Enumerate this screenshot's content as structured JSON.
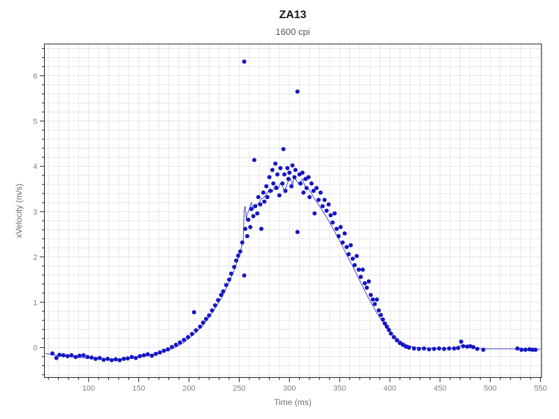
{
  "page": {
    "title": "ZA13",
    "subtitle": "1600 cpi"
  },
  "chart_data": {
    "type": "scatter",
    "title": "ZA13",
    "subtitle": "1600 cpi",
    "xlabel": "Time (ms)",
    "ylabel": "xVelocity (m/s)",
    "xlim": [
      56,
      551
    ],
    "ylim": [
      -0.66,
      6.7
    ],
    "x_major_ticks": [
      100,
      150,
      200,
      250,
      300,
      350,
      400,
      450,
      500,
      550
    ],
    "x_minor_step": 10,
    "y_major_ticks": [
      0,
      1,
      2,
      3,
      4,
      5,
      6
    ],
    "y_minor_step": 0.2,
    "grid": true,
    "legend_position": "none",
    "colors": {
      "marker": "#1515c4",
      "line": "#4646cf",
      "grid": "#e4e4ee",
      "frame": "#1c1c1c",
      "tick": "#1c1c1c",
      "tick_label": "#7f7f7f",
      "axis_label": "#6e6e6e",
      "title": "#1a1a1a",
      "subtitle": "#555555"
    },
    "marker_radius": 3,
    "series": [
      {
        "name": "measured-points",
        "type": "scatter",
        "points": [
          [
            64,
            -0.13
          ],
          [
            68,
            -0.23
          ],
          [
            71,
            -0.16
          ],
          [
            75,
            -0.17
          ],
          [
            79,
            -0.19
          ],
          [
            83,
            -0.17
          ],
          [
            87,
            -0.21
          ],
          [
            91,
            -0.18
          ],
          [
            95,
            -0.17
          ],
          [
            99,
            -0.21
          ],
          [
            103,
            -0.22
          ],
          [
            107,
            -0.25
          ],
          [
            111,
            -0.23
          ],
          [
            115,
            -0.27
          ],
          [
            119,
            -0.25
          ],
          [
            123,
            -0.28
          ],
          [
            127,
            -0.26
          ],
          [
            131,
            -0.28
          ],
          [
            135,
            -0.25
          ],
          [
            139,
            -0.24
          ],
          [
            143,
            -0.21
          ],
          [
            147,
            -0.23
          ],
          [
            151,
            -0.19
          ],
          [
            155,
            -0.17
          ],
          [
            159,
            -0.15
          ],
          [
            163,
            -0.18
          ],
          [
            167,
            -0.14
          ],
          [
            171,
            -0.11
          ],
          [
            175,
            -0.07
          ],
          [
            179,
            -0.04
          ],
          [
            183,
            0.01
          ],
          [
            187,
            0.06
          ],
          [
            191,
            0.11
          ],
          [
            195,
            0.17
          ],
          [
            199,
            0.23
          ],
          [
            203,
            0.3
          ],
          [
            205,
            0.78
          ],
          [
            207,
            0.38
          ],
          [
            211,
            0.46
          ],
          [
            214,
            0.55
          ],
          [
            217,
            0.63
          ],
          [
            220,
            0.71
          ],
          [
            223,
            0.82
          ],
          [
            226,
            0.93
          ],
          [
            229,
            1.05
          ],
          [
            232,
            1.16
          ],
          [
            234,
            1.24
          ],
          [
            237,
            1.38
          ],
          [
            240,
            1.5
          ],
          [
            242,
            1.63
          ],
          [
            245,
            1.78
          ],
          [
            247,
            1.92
          ],
          [
            249,
            2.03
          ],
          [
            251,
            2.12
          ],
          [
            253,
            2.32
          ],
          [
            255,
            6.31
          ],
          [
            255,
            1.59
          ],
          [
            256,
            2.62
          ],
          [
            258,
            2.46
          ],
          [
            259,
            2.82
          ],
          [
            261,
            2.66
          ],
          [
            262,
            3.06
          ],
          [
            264,
            2.9
          ],
          [
            265,
            4.14
          ],
          [
            266,
            3.12
          ],
          [
            268,
            2.96
          ],
          [
            269,
            3.32
          ],
          [
            271,
            3.16
          ],
          [
            272,
            2.62
          ],
          [
            274,
            3.42
          ],
          [
            275,
            3.22
          ],
          [
            277,
            3.56
          ],
          [
            278,
            3.32
          ],
          [
            280,
            3.76
          ],
          [
            281,
            3.46
          ],
          [
            283,
            3.92
          ],
          [
            284,
            3.62
          ],
          [
            286,
            4.06
          ],
          [
            287,
            3.52
          ],
          [
            288,
            3.82
          ],
          [
            290,
            3.36
          ],
          [
            291,
            3.96
          ],
          [
            293,
            3.62
          ],
          [
            294,
            4.38
          ],
          [
            295,
            3.82
          ],
          [
            296,
            3.46
          ],
          [
            298,
            3.96
          ],
          [
            299,
            3.72
          ],
          [
            300,
            3.86
          ],
          [
            302,
            3.56
          ],
          [
            303,
            4.02
          ],
          [
            305,
            3.76
          ],
          [
            306,
            3.92
          ],
          [
            308,
            5.65
          ],
          [
            308,
            2.55
          ],
          [
            310,
            3.82
          ],
          [
            311,
            3.62
          ],
          [
            313,
            3.86
          ],
          [
            314,
            3.42
          ],
          [
            316,
            3.72
          ],
          [
            317,
            3.52
          ],
          [
            319,
            3.76
          ],
          [
            320,
            3.32
          ],
          [
            322,
            3.62
          ],
          [
            324,
            3.46
          ],
          [
            325,
            2.96
          ],
          [
            327,
            3.52
          ],
          [
            329,
            3.26
          ],
          [
            331,
            3.42
          ],
          [
            333,
            3.12
          ],
          [
            335,
            3.26
          ],
          [
            337,
            3.02
          ],
          [
            339,
            3.16
          ],
          [
            341,
            2.92
          ],
          [
            343,
            2.76
          ],
          [
            345,
            2.96
          ],
          [
            347,
            2.62
          ],
          [
            349,
            2.46
          ],
          [
            351,
            2.66
          ],
          [
            353,
            2.32
          ],
          [
            355,
            2.52
          ],
          [
            357,
            2.22
          ],
          [
            359,
            2.06
          ],
          [
            361,
            2.26
          ],
          [
            363,
            1.96
          ],
          [
            365,
            1.82
          ],
          [
            367,
            2.02
          ],
          [
            369,
            1.72
          ],
          [
            371,
            1.56
          ],
          [
            373,
            1.72
          ],
          [
            375,
            1.42
          ],
          [
            377,
            1.32
          ],
          [
            379,
            1.46
          ],
          [
            381,
            1.16
          ],
          [
            383,
            1.06
          ],
          [
            385,
            0.96
          ],
          [
            387,
            1.06
          ],
          [
            389,
            0.82
          ],
          [
            391,
            0.72
          ],
          [
            393,
            0.62
          ],
          [
            395,
            0.53
          ],
          [
            397,
            0.46
          ],
          [
            399,
            0.39
          ],
          [
            401,
            0.31
          ],
          [
            404,
            0.23
          ],
          [
            407,
            0.16
          ],
          [
            410,
            0.1
          ],
          [
            413,
            0.06
          ],
          [
            416,
            0.02
          ],
          [
            419,
            0.0
          ],
          [
            424,
            -0.02
          ],
          [
            429,
            -0.03
          ],
          [
            434,
            -0.02
          ],
          [
            439,
            -0.04
          ],
          [
            444,
            -0.03
          ],
          [
            449,
            -0.02
          ],
          [
            454,
            -0.03
          ],
          [
            459,
            -0.02
          ],
          [
            464,
            -0.02
          ],
          [
            468,
            -0.01
          ],
          [
            471,
            0.13
          ],
          [
            473,
            0.03
          ],
          [
            477,
            0.02
          ],
          [
            480,
            0.03
          ],
          [
            483,
            0.01
          ],
          [
            487,
            -0.03
          ],
          [
            493,
            -0.05
          ],
          [
            527,
            -0.02
          ],
          [
            531,
            -0.05
          ],
          [
            535,
            -0.05
          ],
          [
            539,
            -0.04
          ],
          [
            542,
            -0.05
          ],
          [
            545,
            -0.05
          ]
        ]
      },
      {
        "name": "fit-line",
        "type": "line",
        "points": [
          [
            57,
            -0.13
          ],
          [
            62,
            -0.15
          ],
          [
            68,
            -0.17
          ],
          [
            75,
            -0.19
          ],
          [
            82,
            -0.2
          ],
          [
            90,
            -0.22
          ],
          [
            98,
            -0.23
          ],
          [
            106,
            -0.24
          ],
          [
            114,
            -0.26
          ],
          [
            122,
            -0.27
          ],
          [
            130,
            -0.26
          ],
          [
            138,
            -0.24
          ],
          [
            146,
            -0.22
          ],
          [
            154,
            -0.19
          ],
          [
            162,
            -0.16
          ],
          [
            170,
            -0.12
          ],
          [
            178,
            -0.07
          ],
          [
            186,
            0.0
          ],
          [
            194,
            0.1
          ],
          [
            202,
            0.24
          ],
          [
            209,
            0.38
          ],
          [
            215,
            0.52
          ],
          [
            221,
            0.7
          ],
          [
            227,
            0.9
          ],
          [
            233,
            1.12
          ],
          [
            239,
            1.4
          ],
          [
            244,
            1.65
          ],
          [
            248,
            1.9
          ],
          [
            251,
            2.1
          ],
          [
            253,
            2.28
          ],
          [
            254,
            2.35
          ],
          [
            255,
            3.05
          ],
          [
            256,
            3.12
          ],
          [
            257,
            2.82
          ],
          [
            258,
            2.95
          ],
          [
            260,
            3.05
          ],
          [
            262,
            3.2
          ],
          [
            264,
            3.05
          ],
          [
            266,
            3.12
          ],
          [
            269,
            3.18
          ],
          [
            272,
            3.28
          ],
          [
            275,
            3.32
          ],
          [
            278,
            3.42
          ],
          [
            281,
            3.5
          ],
          [
            283,
            3.44
          ],
          [
            285,
            3.54
          ],
          [
            287,
            3.58
          ],
          [
            289,
            3.52
          ],
          [
            291,
            3.62
          ],
          [
            293,
            3.58
          ],
          [
            295,
            3.42
          ],
          [
            297,
            3.56
          ],
          [
            299,
            3.68
          ],
          [
            301,
            3.72
          ],
          [
            303,
            3.6
          ],
          [
            305,
            3.76
          ],
          [
            307,
            3.68
          ],
          [
            309,
            3.62
          ],
          [
            311,
            3.66
          ],
          [
            313,
            3.72
          ],
          [
            315,
            3.58
          ],
          [
            318,
            3.52
          ],
          [
            321,
            3.44
          ],
          [
            324,
            3.32
          ],
          [
            327,
            3.22
          ],
          [
            330,
            3.12
          ],
          [
            334,
            2.98
          ],
          [
            338,
            2.84
          ],
          [
            342,
            2.68
          ],
          [
            346,
            2.52
          ],
          [
            350,
            2.36
          ],
          [
            354,
            2.18
          ],
          [
            358,
            2.0
          ],
          [
            362,
            1.84
          ],
          [
            366,
            1.66
          ],
          [
            370,
            1.48
          ],
          [
            374,
            1.3
          ],
          [
            378,
            1.12
          ],
          [
            382,
            0.96
          ],
          [
            386,
            0.8
          ],
          [
            390,
            0.66
          ],
          [
            394,
            0.53
          ],
          [
            398,
            0.42
          ],
          [
            402,
            0.31
          ],
          [
            406,
            0.22
          ],
          [
            410,
            0.15
          ],
          [
            414,
            0.09
          ],
          [
            418,
            0.05
          ],
          [
            422,
            0.02
          ],
          [
            428,
            0.0
          ],
          [
            436,
            -0.01
          ],
          [
            444,
            -0.02
          ],
          [
            452,
            -0.02
          ],
          [
            460,
            -0.02
          ],
          [
            466,
            -0.01
          ],
          [
            470,
            0.04
          ],
          [
            474,
            0.05
          ],
          [
            478,
            0.03
          ],
          [
            483,
            0.01
          ],
          [
            490,
            -0.02
          ],
          [
            498,
            -0.03
          ],
          [
            506,
            -0.03
          ],
          [
            514,
            -0.03
          ],
          [
            522,
            -0.03
          ],
          [
            530,
            -0.04
          ],
          [
            538,
            -0.04
          ],
          [
            546,
            -0.04
          ],
          [
            550,
            -0.04
          ]
        ]
      }
    ]
  }
}
